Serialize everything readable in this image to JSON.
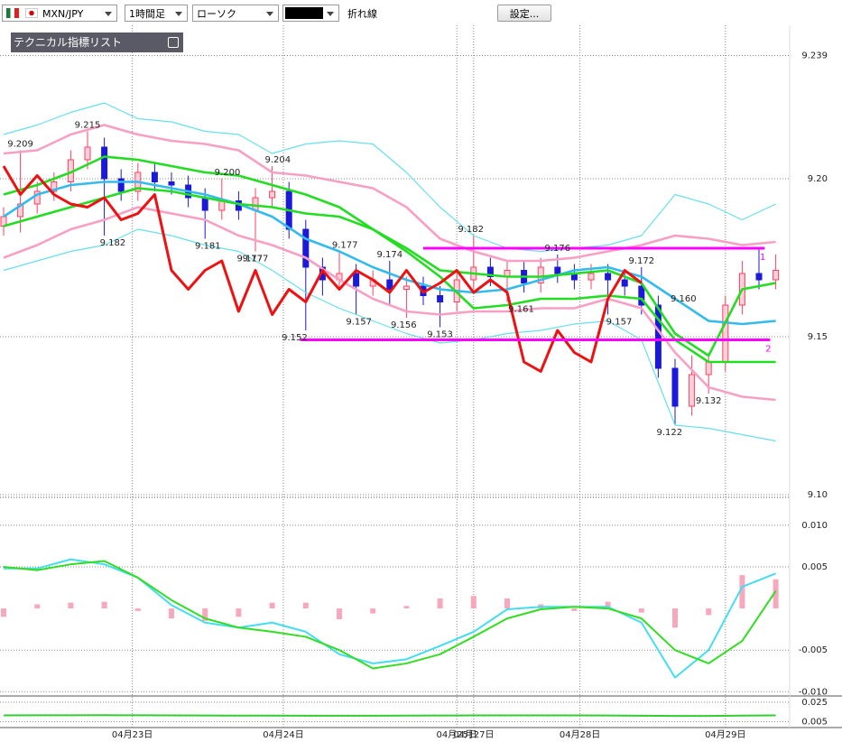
{
  "toolbar": {
    "symbol": "MXN/JPY",
    "timeframe": "1時間足",
    "chart_style": "ローソク",
    "overlay_style": "折れ線",
    "settings_button": "設定..."
  },
  "indicator_panel": {
    "title": "テクニカル指標リスト"
  },
  "chart_data": [
    {
      "type": "candlestick",
      "x": [
        0,
        3,
        6,
        9,
        12,
        15,
        18,
        21,
        24,
        27,
        30,
        33,
        36,
        39,
        42,
        45,
        48,
        51,
        54,
        57,
        60,
        63,
        66,
        69,
        72,
        75,
        78,
        81,
        84,
        87,
        90,
        93,
        96,
        99,
        102,
        105,
        108,
        111,
        114,
        117,
        120,
        123,
        126,
        129,
        132,
        135,
        138
      ],
      "open": [
        9.185,
        9.188,
        9.192,
        9.196,
        9.199,
        9.206,
        9.21,
        9.2,
        9.196,
        9.202,
        9.199,
        9.198,
        9.194,
        9.19,
        9.193,
        9.19,
        9.194,
        9.196,
        9.184,
        9.172,
        9.168,
        9.17,
        9.166,
        9.168,
        9.165,
        9.166,
        9.163,
        9.161,
        9.168,
        9.172,
        9.169,
        9.171,
        9.167,
        9.172,
        9.17,
        9.168,
        9.17,
        9.168,
        9.166,
        9.16,
        9.14,
        9.128,
        9.138,
        9.142,
        9.16,
        9.17,
        9.168
      ],
      "high": [
        9.191,
        9.209,
        9.199,
        9.202,
        9.209,
        9.215,
        9.213,
        9.203,
        9.205,
        9.205,
        9.202,
        9.201,
        9.197,
        9.2,
        9.196,
        9.197,
        9.204,
        9.199,
        9.187,
        9.175,
        9.177,
        9.173,
        9.171,
        9.174,
        9.169,
        9.169,
        9.166,
        9.171,
        9.182,
        9.175,
        9.174,
        9.174,
        9.175,
        9.176,
        9.173,
        9.173,
        9.173,
        9.171,
        9.172,
        9.163,
        9.143,
        9.144,
        9.145,
        9.163,
        9.174,
        9.178,
        9.176
      ],
      "low": [
        9.182,
        9.183,
        9.189,
        9.193,
        9.196,
        9.203,
        9.182,
        9.193,
        9.193,
        9.196,
        9.195,
        9.191,
        9.181,
        9.187,
        9.187,
        9.177,
        9.191,
        9.181,
        9.152,
        9.163,
        9.165,
        9.157,
        9.163,
        9.16,
        9.156,
        9.16,
        9.153,
        9.158,
        9.165,
        9.166,
        9.161,
        9.164,
        9.164,
        9.167,
        9.165,
        9.165,
        9.157,
        9.163,
        9.157,
        9.137,
        9.122,
        9.125,
        9.132,
        9.139,
        9.157,
        9.165,
        9.165
      ],
      "close": [
        9.188,
        9.192,
        9.196,
        9.199,
        9.206,
        9.21,
        9.2,
        9.196,
        9.202,
        9.199,
        9.198,
        9.194,
        9.19,
        9.193,
        9.19,
        9.194,
        9.196,
        9.184,
        9.172,
        9.168,
        9.17,
        9.166,
        9.168,
        9.165,
        9.166,
        9.163,
        9.161,
        9.168,
        9.172,
        9.169,
        9.171,
        9.167,
        9.172,
        9.17,
        9.168,
        9.17,
        9.168,
        9.166,
        9.16,
        9.14,
        9.128,
        9.138,
        9.142,
        9.16,
        9.17,
        9.168,
        9.171
      ],
      "up_color": "#ff4060",
      "down_color": "#1a1ad8",
      "series": [
        {
          "color": "#66e0ee",
          "x": [
            0,
            6,
            12,
            18,
            24,
            30,
            36,
            42,
            48,
            54,
            60,
            66,
            72,
            78,
            84,
            90,
            96,
            102,
            108,
            114,
            120,
            126,
            132,
            138
          ],
          "values": [
            9.214,
            9.217,
            9.221,
            9.224,
            9.219,
            9.218,
            9.215,
            9.214,
            9.208,
            9.211,
            9.212,
            9.211,
            9.202,
            9.191,
            9.182,
            9.178,
            9.177,
            9.178,
            9.179,
            9.182,
            9.195,
            9.192,
            9.187,
            9.192
          ]
        },
        {
          "color": "#66e0ee",
          "x": [
            0,
            6,
            12,
            18,
            24,
            30,
            36,
            42,
            48,
            54,
            60,
            66,
            72,
            78,
            84,
            90,
            96,
            102,
            108,
            114,
            120,
            126,
            132,
            138
          ],
          "values": [
            9.171,
            9.174,
            9.177,
            9.179,
            9.184,
            9.182,
            9.179,
            9.177,
            9.171,
            9.164,
            9.159,
            9.155,
            9.151,
            9.148,
            9.149,
            9.151,
            9.152,
            9.154,
            9.155,
            9.149,
            9.122,
            9.121,
            9.119,
            9.117
          ]
        },
        {
          "color": "#f7a0c4",
          "x": [
            0,
            6,
            12,
            18,
            24,
            30,
            36,
            42,
            48,
            54,
            60,
            66,
            72,
            78,
            84,
            90,
            96,
            102,
            108,
            114,
            120,
            126,
            132,
            138
          ],
          "values": [
            9.208,
            9.209,
            9.214,
            9.217,
            9.214,
            9.212,
            9.211,
            9.209,
            9.202,
            9.201,
            9.199,
            9.197,
            9.191,
            9.181,
            9.177,
            9.174,
            9.174,
            9.175,
            9.177,
            9.179,
            9.182,
            9.181,
            9.179,
            9.18
          ]
        },
        {
          "color": "#f7a0c4",
          "x": [
            0,
            6,
            12,
            18,
            24,
            30,
            36,
            42,
            48,
            54,
            60,
            66,
            72,
            78,
            84,
            90,
            96,
            102,
            108,
            114,
            120,
            126,
            132,
            138
          ],
          "values": [
            9.175,
            9.179,
            9.184,
            9.187,
            9.191,
            9.189,
            9.187,
            9.182,
            9.179,
            9.175,
            9.168,
            9.162,
            9.158,
            9.157,
            9.158,
            9.158,
            9.159,
            9.159,
            9.162,
            9.159,
            9.145,
            9.134,
            9.131,
            9.13
          ]
        },
        {
          "color": "#33bbee",
          "x": [
            0,
            6,
            12,
            18,
            24,
            30,
            36,
            42,
            48,
            54,
            60,
            66,
            72,
            78,
            84,
            90,
            96,
            102,
            108,
            114,
            120,
            126,
            132,
            138
          ],
          "values": [
            9.188,
            9.195,
            9.198,
            9.199,
            9.199,
            9.197,
            9.195,
            9.192,
            9.188,
            9.181,
            9.177,
            9.172,
            9.168,
            9.165,
            9.164,
            9.165,
            9.168,
            9.171,
            9.172,
            9.169,
            9.162,
            9.155,
            9.154,
            9.155
          ]
        },
        {
          "color": "#22dd22",
          "x": [
            0,
            6,
            12,
            18,
            24,
            30,
            36,
            42,
            48,
            54,
            60,
            66,
            72,
            78,
            84,
            90,
            96,
            102,
            108,
            114,
            120,
            126,
            132,
            138
          ],
          "values": [
            9.185,
            9.188,
            9.191,
            9.194,
            9.197,
            9.196,
            9.194,
            9.192,
            9.191,
            9.189,
            9.188,
            9.184,
            9.177,
            9.169,
            9.159,
            9.16,
            9.162,
            9.162,
            9.163,
            9.162,
            9.149,
            9.142,
            9.142,
            9.142
          ]
        },
        {
          "color": "#22dd22",
          "x": [
            0,
            6,
            12,
            18,
            24,
            30,
            36,
            42,
            48,
            54,
            60,
            66,
            72,
            78,
            84,
            90,
            96,
            102,
            108,
            114,
            120,
            126,
            132,
            138
          ],
          "values": [
            9.195,
            9.198,
            9.202,
            9.207,
            9.206,
            9.204,
            9.202,
            9.201,
            9.198,
            9.195,
            9.191,
            9.184,
            9.178,
            9.171,
            9.17,
            9.169,
            9.169,
            9.17,
            9.171,
            9.167,
            9.151,
            9.144,
            9.165,
            9.167
          ]
        },
        {
          "color": "#ee1111",
          "x": [
            0,
            3,
            6,
            9,
            12,
            15,
            18,
            21,
            24,
            27,
            30,
            33,
            36,
            39,
            42,
            45,
            48,
            51,
            54,
            57,
            60,
            63,
            66,
            69,
            72,
            75,
            78,
            81,
            84,
            87,
            90,
            93,
            96,
            99,
            102,
            105,
            108,
            111,
            114
          ],
          "values": [
            9.204,
            9.195,
            9.201,
            9.195,
            9.192,
            9.191,
            9.194,
            9.187,
            9.189,
            9.195,
            9.171,
            9.165,
            9.171,
            9.174,
            9.158,
            9.171,
            9.157,
            9.165,
            9.161,
            9.171,
            9.165,
            9.171,
            9.168,
            9.164,
            9.171,
            9.164,
            9.167,
            9.171,
            9.164,
            9.168,
            9.164,
            9.142,
            9.139,
            9.152,
            9.145,
            9.142,
            9.162,
            9.171,
            9.167
          ]
        }
      ],
      "hlines": [
        {
          "value": 9.178,
          "x": [
            75,
            136
          ],
          "label": "1",
          "color": "#ff00ff"
        },
        {
          "value": 9.149,
          "x": [
            53,
            137
          ],
          "label": "2",
          "color": "#ff00ff"
        }
      ],
      "annotations": [
        {
          "x": 3,
          "value": 9.209,
          "label": "9.209"
        },
        {
          "x": 15,
          "value": 9.215,
          "label": "9.215"
        },
        {
          "x": 19.5,
          "value": 9.182,
          "label": "9.182"
        },
        {
          "x": 40,
          "value": 9.2,
          "label": "9.200"
        },
        {
          "x": 36.5,
          "value": 9.181,
          "label": "9.181"
        },
        {
          "x": 49,
          "value": 9.204,
          "label": "9.204"
        },
        {
          "x": 45,
          "value": 9.177,
          "label": "9.177"
        },
        {
          "x": 44,
          "value": 9.177,
          "label": "9.177"
        },
        {
          "x": 52,
          "value": 9.152,
          "label": "9.152"
        },
        {
          "x": 61,
          "value": 9.177,
          "label": "9.177"
        },
        {
          "x": 63.5,
          "value": 9.157,
          "label": "9.157"
        },
        {
          "x": 69,
          "value": 9.174,
          "label": "9.174"
        },
        {
          "x": 71.5,
          "value": 9.156,
          "label": "9.156"
        },
        {
          "x": 83.5,
          "value": 9.182,
          "label": "9.182"
        },
        {
          "x": 78,
          "value": 9.153,
          "label": "9.153"
        },
        {
          "x": 99,
          "value": 9.176,
          "label": "9.176"
        },
        {
          "x": 92.5,
          "value": 9.161,
          "label": "9.161"
        },
        {
          "x": 114,
          "value": 9.172,
          "label": "9.172"
        },
        {
          "x": 110,
          "value": 9.157,
          "label": "9.157"
        },
        {
          "x": 121.5,
          "value": 9.16,
          "label": "9.160"
        },
        {
          "x": 119,
          "value": 9.122,
          "label": "9.122"
        },
        {
          "x": 126,
          "value": 9.132,
          "label": "9.132"
        }
      ],
      "xlim": [
        0,
        140
      ],
      "xticks": [
        {
          "value": 23,
          "label": "04月23日"
        },
        {
          "value": 50,
          "label": "04月24日"
        },
        {
          "value": 81,
          "label": "04月25日"
        },
        {
          "value": 84,
          "label": "04月27日"
        },
        {
          "value": 103,
          "label": "04月28日"
        },
        {
          "value": 129,
          "label": "04月29日"
        }
      ],
      "ylim": [
        9.1,
        9.249
      ],
      "yticks": [
        9.239,
        {
          "value": 9.2,
          "label": "9.20"
        },
        {
          "value": 9.15,
          "label": "9.15"
        },
        {
          "value": 9.1,
          "label": "9.10"
        }
      ]
    },
    {
      "type": "line",
      "x": [
        0,
        6,
        12,
        18,
        24,
        30,
        36,
        42,
        48,
        54,
        60,
        66,
        72,
        78,
        84,
        90,
        96,
        102,
        108,
        114,
        120,
        126,
        132,
        138
      ],
      "series": [
        {
          "type": "bar",
          "color": "#f7a8bc",
          "values": [
            -0.001,
            0.0005,
            0.0007,
            0.0008,
            -0.0003,
            -0.0012,
            -0.0015,
            -0.001,
            0.0007,
            0.0007,
            -0.0013,
            -0.0006,
            0.0003,
            0.0012,
            0.0015,
            0.0012,
            0.0005,
            -0.0003,
            0.0008,
            -0.0005,
            -0.0023,
            -0.0008,
            0.004,
            0.0035
          ]
        },
        {
          "color": "#44ddf0",
          "values": [
            0.0048,
            0.0048,
            0.0059,
            0.0053,
            0.0037,
            0.0004,
            -0.0017,
            -0.0023,
            -0.0017,
            -0.0028,
            -0.0055,
            -0.0066,
            -0.0061,
            -0.0045,
            -0.0028,
            -0.0001,
            0.0002,
            0.0002,
            0.0002,
            -0.0017,
            -0.0083,
            -0.005,
            0.0026,
            0.0042
          ]
        },
        {
          "color": "#33dd22",
          "values": [
            0.005,
            0.0046,
            0.0053,
            0.0057,
            0.0037,
            0.001,
            -0.0012,
            -0.0023,
            -0.0028,
            -0.0034,
            -0.005,
            -0.0072,
            -0.0066,
            -0.0055,
            -0.0034,
            -0.0012,
            -0.0001,
            0.0002,
            0,
            -0.0012,
            -0.005,
            -0.0066,
            -0.0039,
            0.0021
          ]
        }
      ],
      "xlim": [
        0,
        140
      ],
      "ylim": [
        -0.0104,
        0.0128
      ],
      "yticks": [
        {
          "value": 0.01,
          "label": "0.010"
        },
        0.005,
        -0.005,
        {
          "value": -0.01,
          "label": "-0.010"
        }
      ]
    },
    {
      "type": "line",
      "x": [
        0,
        6,
        12,
        18,
        24,
        30,
        36,
        42,
        48,
        54,
        60,
        66,
        72,
        78,
        84,
        90,
        96,
        102,
        108,
        114,
        120,
        126,
        132,
        138
      ],
      "series": [
        {
          "color": "#33cc33",
          "values": [
            0.0115,
            0.0116,
            0.0116,
            0.0117,
            0.0116,
            0.0115,
            0.0114,
            0.0113,
            0.0113,
            0.0112,
            0.0112,
            0.0112,
            0.0113,
            0.0114,
            0.0115,
            0.0115,
            0.0115,
            0.0115,
            0.0114,
            0.0112,
            0.011,
            0.011,
            0.0113,
            0.0115
          ]
        }
      ],
      "xlim": [
        0,
        140
      ],
      "ylim": [
        0,
        0.0295
      ],
      "yticks": [
        0.025,
        0.005
      ]
    }
  ]
}
